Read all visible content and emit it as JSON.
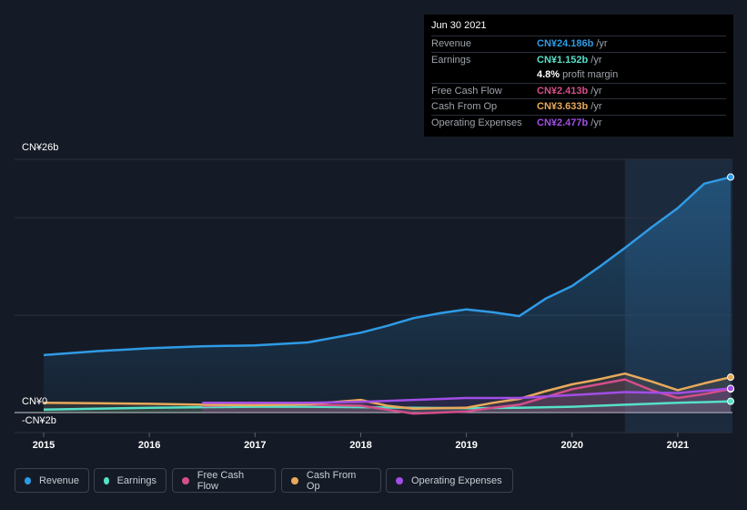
{
  "tooltip": {
    "date": "Jun 30 2021",
    "rows": [
      {
        "label": "Revenue",
        "value": "CN¥24.186b",
        "unit": "/yr",
        "color": "#2f9be6"
      },
      {
        "label": "Earnings",
        "value": "CN¥1.152b",
        "unit": "/yr",
        "color": "#55e0c8"
      },
      {
        "label": "",
        "value": "4.8%",
        "unit": "profit margin",
        "color": "#ffffff"
      },
      {
        "label": "Free Cash Flow",
        "value": "CN¥2.413b",
        "unit": "/yr",
        "color": "#d44e8a"
      },
      {
        "label": "Cash From Op",
        "value": "CN¥3.633b",
        "unit": "/yr",
        "color": "#e8a95b"
      },
      {
        "label": "Operating Expenses",
        "value": "CN¥2.477b",
        "unit": "/yr",
        "color": "#a14ee6"
      }
    ]
  },
  "legend": [
    {
      "label": "Revenue",
      "color": "#2f9be6"
    },
    {
      "label": "Earnings",
      "color": "#55e0c8"
    },
    {
      "label": "Free Cash Flow",
      "color": "#d44e8a"
    },
    {
      "label": "Cash From Op",
      "color": "#e8a95b"
    },
    {
      "label": "Operating Expenses",
      "color": "#a14ee6"
    }
  ],
  "chart_data": {
    "type": "line",
    "ylim": [
      -2,
      26
    ],
    "y_tick_labels": [
      "CN¥26b",
      "CN¥0",
      "-CN¥2b"
    ],
    "x_tick_labels": [
      "2015",
      "2016",
      "2017",
      "2018",
      "2019",
      "2020",
      "2021"
    ],
    "x_range": [
      2015.0,
      2021.5
    ],
    "highlight_from": 2020.5,
    "series": [
      {
        "name": "Revenue",
        "color": "#2f9be6",
        "area": true,
        "x": [
          2015.0,
          2015.5,
          2016.0,
          2016.5,
          2017.0,
          2017.5,
          2018.0,
          2018.25,
          2018.5,
          2018.75,
          2019.0,
          2019.25,
          2019.5,
          2019.75,
          2020.0,
          2020.25,
          2020.5,
          2020.75,
          2021.0,
          2021.25,
          2021.5
        ],
        "y": [
          5.9,
          6.3,
          6.6,
          6.8,
          6.9,
          7.2,
          8.2,
          8.9,
          9.7,
          10.2,
          10.6,
          10.3,
          9.9,
          11.7,
          13.0,
          14.9,
          16.9,
          19.0,
          21.0,
          23.5,
          24.186
        ]
      },
      {
        "name": "Earnings",
        "color": "#55e0c8",
        "x": [
          2015.0,
          2015.5,
          2016.0,
          2016.5,
          2017.0,
          2017.5,
          2018.0,
          2018.5,
          2019.0,
          2019.5,
          2020.0,
          2020.5,
          2021.0,
          2021.5
        ],
        "y": [
          0.3,
          0.4,
          0.5,
          0.55,
          0.6,
          0.6,
          0.55,
          0.5,
          0.45,
          0.5,
          0.6,
          0.8,
          1.0,
          1.152
        ]
      },
      {
        "name": "Free Cash Flow",
        "color": "#d44e8a",
        "x": [
          2016.5,
          2017.0,
          2017.5,
          2018.0,
          2018.25,
          2018.5,
          2018.75,
          2019.0,
          2019.25,
          2019.5,
          2019.75,
          2020.0,
          2020.25,
          2020.5,
          2020.75,
          2021.0,
          2021.25,
          2021.5
        ],
        "y": [
          0.7,
          0.8,
          0.8,
          0.7,
          0.3,
          -0.1,
          0.0,
          0.1,
          0.5,
          0.8,
          1.6,
          2.4,
          2.9,
          3.4,
          2.3,
          1.5,
          1.9,
          2.413
        ]
      },
      {
        "name": "Cash From Op",
        "color": "#e8a95b",
        "x": [
          2015.0,
          2015.5,
          2016.0,
          2016.5,
          2017.0,
          2017.5,
          2018.0,
          2018.25,
          2018.5,
          2018.75,
          2019.0,
          2019.25,
          2019.5,
          2019.75,
          2020.0,
          2020.25,
          2020.5,
          2020.75,
          2021.0,
          2021.25,
          2021.5
        ],
        "y": [
          1.0,
          0.95,
          0.9,
          0.8,
          0.75,
          0.85,
          1.3,
          0.7,
          0.4,
          0.45,
          0.5,
          1.0,
          1.4,
          2.2,
          2.9,
          3.4,
          4.0,
          3.2,
          2.3,
          3.0,
          3.633
        ]
      },
      {
        "name": "Operating Expenses",
        "color": "#a14ee6",
        "x": [
          2016.5,
          2017.0,
          2017.5,
          2018.0,
          2018.5,
          2019.0,
          2019.5,
          2020.0,
          2020.5,
          2021.0,
          2021.5
        ],
        "y": [
          1.0,
          1.0,
          1.0,
          1.1,
          1.3,
          1.5,
          1.5,
          1.8,
          2.1,
          2.0,
          2.477
        ]
      }
    ]
  }
}
